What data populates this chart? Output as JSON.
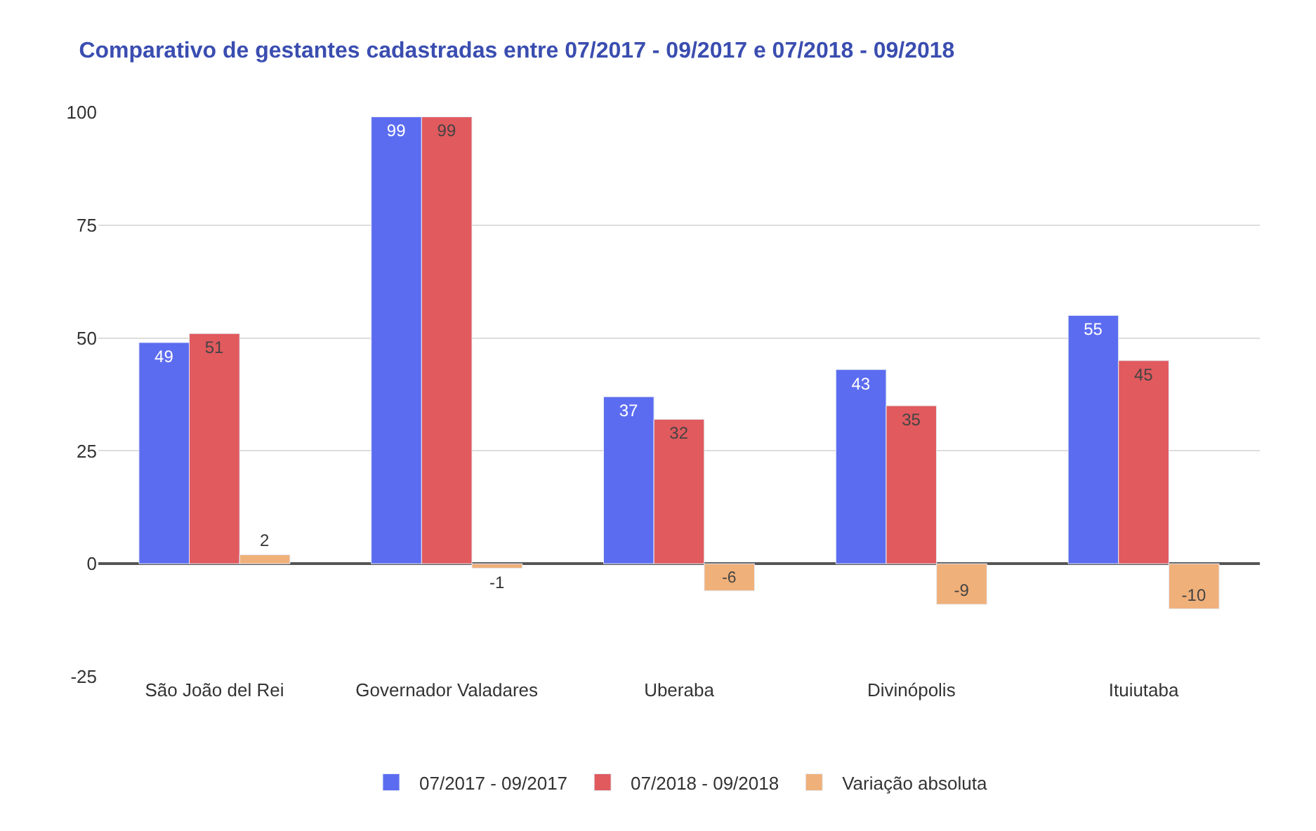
{
  "chart_data": {
    "type": "bar",
    "title": "Comparativo de gestantes cadastradas entre 07/2017 - 09/2017 e 07/2018 - 09/2018",
    "categories": [
      "São João del Rei",
      "Governador Valadares",
      "Uberaba",
      "Divinópolis",
      "Ituiutaba"
    ],
    "series": [
      {
        "name": "07/2017 - 09/2017",
        "color": "#5c6cf0",
        "values": [
          49,
          99,
          37,
          43,
          55
        ]
      },
      {
        "name": "07/2018 - 09/2018",
        "color": "#e05a5e",
        "values": [
          51,
          99,
          32,
          35,
          45
        ]
      },
      {
        "name": "Variação absoluta",
        "color": "#f0b07a",
        "values": [
          2,
          -1,
          -6,
          -9,
          -10
        ]
      }
    ],
    "ylim": [
      -25,
      100
    ],
    "yticks": [
      -25,
      0,
      25,
      50,
      75,
      100
    ],
    "grid": "y",
    "legend": "bottom",
    "data_labels": true
  }
}
